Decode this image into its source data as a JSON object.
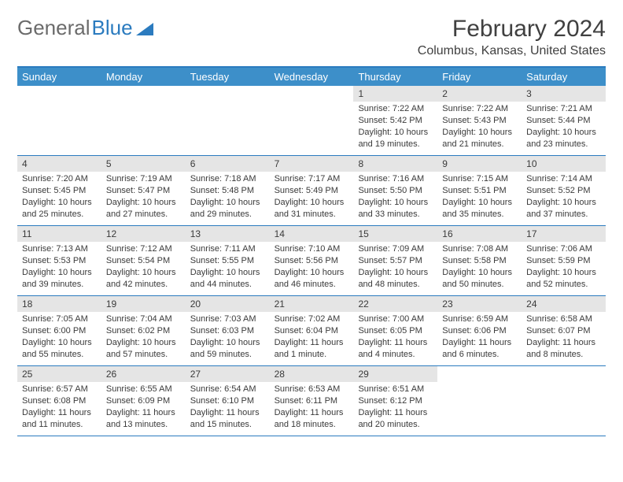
{
  "logo": {
    "text1": "General",
    "text2": "Blue"
  },
  "title": "February 2024",
  "location": "Columbus, Kansas, United States",
  "colors": {
    "header_bg": "#3d8fc9",
    "header_text": "#ffffff",
    "border": "#2b7bbf",
    "daynum_bg": "#e5e5e5",
    "text": "#3a3a3a",
    "logo_gray": "#6b6b6b",
    "logo_blue": "#2b7bbf"
  },
  "day_labels": [
    "Sunday",
    "Monday",
    "Tuesday",
    "Wednesday",
    "Thursday",
    "Friday",
    "Saturday"
  ],
  "weeks": [
    [
      null,
      null,
      null,
      null,
      {
        "n": "1",
        "sunrise": "7:22 AM",
        "sunset": "5:42 PM",
        "daylight": "10 hours and 19 minutes."
      },
      {
        "n": "2",
        "sunrise": "7:22 AM",
        "sunset": "5:43 PM",
        "daylight": "10 hours and 21 minutes."
      },
      {
        "n": "3",
        "sunrise": "7:21 AM",
        "sunset": "5:44 PM",
        "daylight": "10 hours and 23 minutes."
      }
    ],
    [
      {
        "n": "4",
        "sunrise": "7:20 AM",
        "sunset": "5:45 PM",
        "daylight": "10 hours and 25 minutes."
      },
      {
        "n": "5",
        "sunrise": "7:19 AM",
        "sunset": "5:47 PM",
        "daylight": "10 hours and 27 minutes."
      },
      {
        "n": "6",
        "sunrise": "7:18 AM",
        "sunset": "5:48 PM",
        "daylight": "10 hours and 29 minutes."
      },
      {
        "n": "7",
        "sunrise": "7:17 AM",
        "sunset": "5:49 PM",
        "daylight": "10 hours and 31 minutes."
      },
      {
        "n": "8",
        "sunrise": "7:16 AM",
        "sunset": "5:50 PM",
        "daylight": "10 hours and 33 minutes."
      },
      {
        "n": "9",
        "sunrise": "7:15 AM",
        "sunset": "5:51 PM",
        "daylight": "10 hours and 35 minutes."
      },
      {
        "n": "10",
        "sunrise": "7:14 AM",
        "sunset": "5:52 PM",
        "daylight": "10 hours and 37 minutes."
      }
    ],
    [
      {
        "n": "11",
        "sunrise": "7:13 AM",
        "sunset": "5:53 PM",
        "daylight": "10 hours and 39 minutes."
      },
      {
        "n": "12",
        "sunrise": "7:12 AM",
        "sunset": "5:54 PM",
        "daylight": "10 hours and 42 minutes."
      },
      {
        "n": "13",
        "sunrise": "7:11 AM",
        "sunset": "5:55 PM",
        "daylight": "10 hours and 44 minutes."
      },
      {
        "n": "14",
        "sunrise": "7:10 AM",
        "sunset": "5:56 PM",
        "daylight": "10 hours and 46 minutes."
      },
      {
        "n": "15",
        "sunrise": "7:09 AM",
        "sunset": "5:57 PM",
        "daylight": "10 hours and 48 minutes."
      },
      {
        "n": "16",
        "sunrise": "7:08 AM",
        "sunset": "5:58 PM",
        "daylight": "10 hours and 50 minutes."
      },
      {
        "n": "17",
        "sunrise": "7:06 AM",
        "sunset": "5:59 PM",
        "daylight": "10 hours and 52 minutes."
      }
    ],
    [
      {
        "n": "18",
        "sunrise": "7:05 AM",
        "sunset": "6:00 PM",
        "daylight": "10 hours and 55 minutes."
      },
      {
        "n": "19",
        "sunrise": "7:04 AM",
        "sunset": "6:02 PM",
        "daylight": "10 hours and 57 minutes."
      },
      {
        "n": "20",
        "sunrise": "7:03 AM",
        "sunset": "6:03 PM",
        "daylight": "10 hours and 59 minutes."
      },
      {
        "n": "21",
        "sunrise": "7:02 AM",
        "sunset": "6:04 PM",
        "daylight": "11 hours and 1 minute."
      },
      {
        "n": "22",
        "sunrise": "7:00 AM",
        "sunset": "6:05 PM",
        "daylight": "11 hours and 4 minutes."
      },
      {
        "n": "23",
        "sunrise": "6:59 AM",
        "sunset": "6:06 PM",
        "daylight": "11 hours and 6 minutes."
      },
      {
        "n": "24",
        "sunrise": "6:58 AM",
        "sunset": "6:07 PM",
        "daylight": "11 hours and 8 minutes."
      }
    ],
    [
      {
        "n": "25",
        "sunrise": "6:57 AM",
        "sunset": "6:08 PM",
        "daylight": "11 hours and 11 minutes."
      },
      {
        "n": "26",
        "sunrise": "6:55 AM",
        "sunset": "6:09 PM",
        "daylight": "11 hours and 13 minutes."
      },
      {
        "n": "27",
        "sunrise": "6:54 AM",
        "sunset": "6:10 PM",
        "daylight": "11 hours and 15 minutes."
      },
      {
        "n": "28",
        "sunrise": "6:53 AM",
        "sunset": "6:11 PM",
        "daylight": "11 hours and 18 minutes."
      },
      {
        "n": "29",
        "sunrise": "6:51 AM",
        "sunset": "6:12 PM",
        "daylight": "11 hours and 20 minutes."
      },
      null,
      null
    ]
  ],
  "labels": {
    "sunrise": "Sunrise: ",
    "sunset": "Sunset: ",
    "daylight": "Daylight: "
  }
}
